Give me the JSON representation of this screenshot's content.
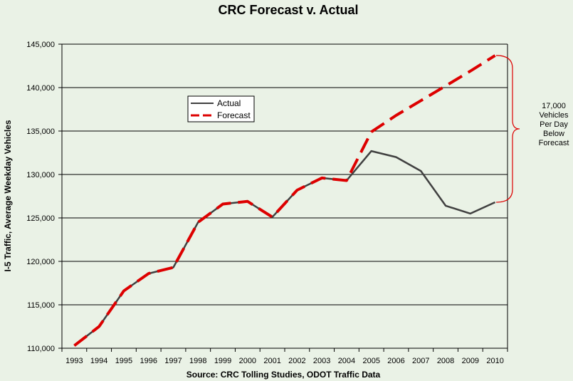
{
  "chart_data": {
    "type": "line",
    "title": "CRC Forecast v. Actual",
    "ylabel": "I-5 Traffic, Average Weekday Vehicles",
    "xlabel": "Source:  CRC Tolling Studies, ODOT Traffic Data",
    "ylim": [
      110000,
      145000
    ],
    "yticks": [
      110000,
      115000,
      120000,
      125000,
      130000,
      135000,
      140000,
      145000
    ],
    "ytick_labels": [
      "110,000",
      "115,000",
      "120,000",
      "125,000",
      "130,000",
      "135,000",
      "140,000",
      "145,000"
    ],
    "grid": "horizontal",
    "legend_position": "upper-left",
    "x": [
      "1993",
      "1994",
      "1995",
      "1996",
      "1997",
      "1998",
      "1999",
      "2000",
      "2001",
      "2002",
      "2003",
      "2004",
      "2005",
      "2006",
      "2007",
      "2008",
      "2009",
      "2010"
    ],
    "series": [
      {
        "name": "Actual",
        "color": "#404040",
        "style": "solid",
        "values": [
          110300,
          112500,
          116600,
          118600,
          119300,
          124500,
          126600,
          126900,
          125100,
          128200,
          129600,
          129300,
          132700,
          132000,
          130400,
          126400,
          125500,
          126800
        ]
      },
      {
        "name": "Forecast",
        "color": "#dd0000",
        "style": "dashed",
        "values": [
          110300,
          112500,
          116600,
          118600,
          119300,
          124500,
          126600,
          126900,
          125100,
          128200,
          129600,
          129300,
          134900,
          136800,
          138500,
          140200,
          141900,
          143700
        ]
      }
    ],
    "annotation": {
      "lines": [
        "17,000",
        "Vehicles",
        "Per Day",
        "Below",
        "Forecast"
      ],
      "from_value": 143700,
      "to_value": 126800,
      "color": "#dd0000"
    }
  }
}
